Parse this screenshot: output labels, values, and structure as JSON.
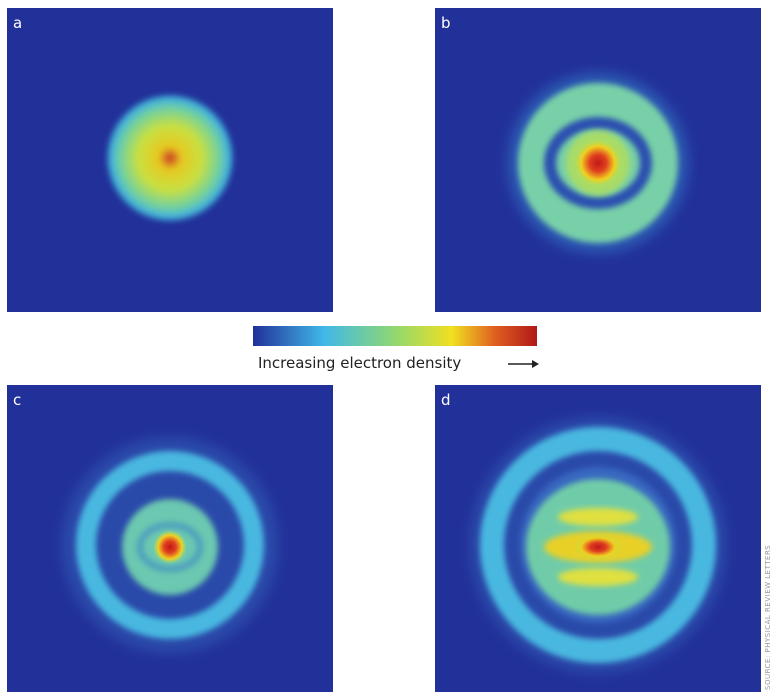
{
  "panels": [
    {
      "label": "a"
    },
    {
      "label": "b"
    },
    {
      "label": "c"
    },
    {
      "label": "d"
    }
  ],
  "colorbar": {
    "label": "Increasing electron density"
  },
  "credit": "SOURCE: PHYSICAL REVIEW LETTERS"
}
